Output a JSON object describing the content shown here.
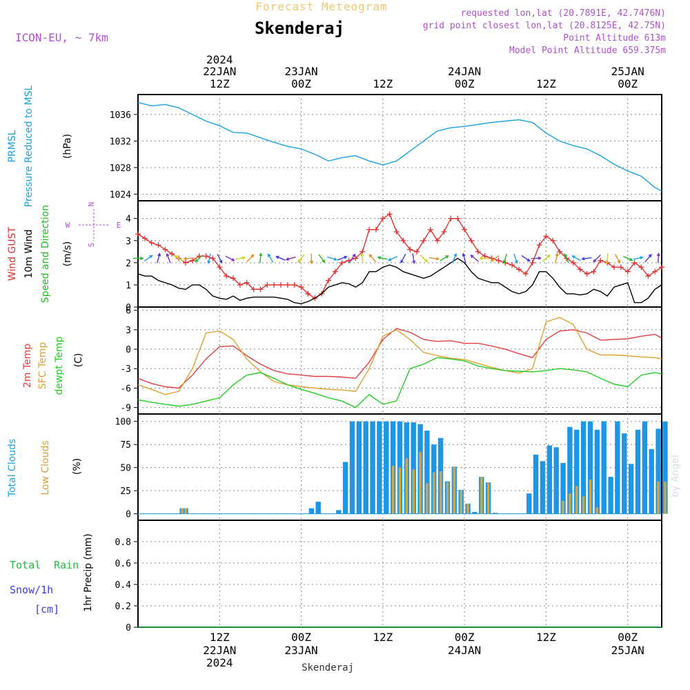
{
  "header": {
    "super_title": "Forecast Meteogram",
    "location": "Skenderaj",
    "model": "ICON-EU, ~ 7km",
    "requested": "requested lon,lat (20.7891E, 42.7476N)",
    "grid_point": "grid point closest lon,lat (20.8125E, 42.75N)",
    "point_alt": "Point Altitude 613m",
    "model_alt": "Model Point Altitude 659.375m",
    "footer": "Skenderaj",
    "credit": "by Angel"
  },
  "colors": {
    "pressure": "#1ba1e2",
    "gust": "#e03030",
    "wind": "#000000",
    "dir": "#22bb22",
    "t2m": "#e04040",
    "sfc": "#e0a030",
    "dew": "#22cc22",
    "total_cloud": "#1e96e6",
    "low_cloud": "#c8a850",
    "rain": "#22bb44",
    "snow": "#3a3ae0",
    "title": "#ecc870",
    "info": "#b050d0",
    "label_cyan": "#1ba1e2"
  },
  "time_axis": {
    "top_ticks": [
      {
        "hour": 12,
        "l1": "2024",
        "l2": "22JAN",
        "l3": "12Z"
      },
      {
        "hour": 24,
        "l1": "",
        "l2": "23JAN",
        "l3": "00Z"
      },
      {
        "hour": 36,
        "l1": "",
        "l2": "",
        "l3": "12Z"
      },
      {
        "hour": 48,
        "l1": "",
        "l2": "24JAN",
        "l3": "00Z"
      },
      {
        "hour": 60,
        "l1": "",
        "l2": "",
        "l3": "12Z"
      },
      {
        "hour": 72,
        "l1": "",
        "l2": "25JAN",
        "l3": "00Z"
      }
    ],
    "bottom_ticks": [
      {
        "hour": 12,
        "l1": "12Z",
        "l2": "22JAN",
        "l3": "2024"
      },
      {
        "hour": 24,
        "l1": "00Z",
        "l2": "23JAN",
        "l3": ""
      },
      {
        "hour": 36,
        "l1": "12Z",
        "l2": "",
        "l3": ""
      },
      {
        "hour": 48,
        "l1": "00Z",
        "l2": "24JAN",
        "l3": ""
      },
      {
        "hour": 60,
        "l1": "12Z",
        "l2": "",
        "l3": ""
      },
      {
        "hour": 72,
        "l1": "00Z",
        "l2": "25JAN",
        "l3": ""
      }
    ],
    "xlim": [
      0,
      77
    ]
  },
  "chart_data": [
    {
      "type": "line",
      "id": "pressure",
      "ylabel": "(hPa)",
      "labels": [
        "PRMSL",
        "Pressure Reduced to MSL"
      ],
      "ylim": [
        1023,
        1039
      ],
      "yticks": [
        1024,
        1028,
        1032,
        1036
      ],
      "series": [
        {
          "name": "PRMSL",
          "color": "#1ba1e2",
          "x": [
            0,
            2,
            4,
            6,
            8,
            10,
            12,
            14,
            16,
            18,
            20,
            22,
            24,
            26,
            28,
            30,
            32,
            34,
            36,
            38,
            40,
            42,
            44,
            46,
            48,
            50,
            52,
            54,
            56,
            58,
            60,
            62,
            64,
            66,
            68,
            70,
            72,
            74,
            76,
            77
          ],
          "y": [
            1037.8,
            1037.3,
            1037.5,
            1037.0,
            1036.0,
            1035.0,
            1034.3,
            1033.3,
            1033.2,
            1032.5,
            1031.8,
            1031.2,
            1030.8,
            1030.0,
            1029.0,
            1029.5,
            1029.8,
            1029.0,
            1028.4,
            1029.0,
            1030.5,
            1032.0,
            1033.5,
            1034.0,
            1034.2,
            1034.5,
            1034.8,
            1035.0,
            1035.2,
            1034.8,
            1033.2,
            1032.0,
            1031.3,
            1030.8,
            1029.8,
            1028.5,
            1027.5,
            1026.7,
            1025.0,
            1024.5
          ]
        }
      ]
    },
    {
      "type": "line",
      "id": "wind",
      "ylabel": "(m/s)",
      "labels": [
        "Wind GUST",
        "10m Wind",
        "Speed and Direction"
      ],
      "compass": {
        "n": "N",
        "s": "S",
        "e": "E",
        "w": "W"
      },
      "ylim": [
        0,
        4.8
      ],
      "yticks": [
        0,
        1,
        2,
        3,
        4
      ],
      "series": [
        {
          "name": "Wind GUST",
          "color": "#e03030",
          "x": [
            0,
            1,
            2,
            3,
            4,
            5,
            6,
            7,
            8,
            9,
            10,
            11,
            12,
            13,
            14,
            15,
            16,
            17,
            18,
            19,
            20,
            21,
            22,
            23,
            24,
            25,
            26,
            27,
            28,
            29,
            30,
            31,
            32,
            33,
            34,
            35,
            36,
            37,
            38,
            39,
            40,
            41,
            42,
            43,
            44,
            45,
            46,
            47,
            48,
            49,
            50,
            51,
            52,
            53,
            54,
            55,
            56,
            57,
            58,
            59,
            60,
            61,
            62,
            63,
            64,
            65,
            66,
            67,
            68,
            69,
            70,
            71,
            72,
            73,
            74,
            75,
            76,
            77
          ],
          "y": [
            3.3,
            3.1,
            2.9,
            2.8,
            2.6,
            2.4,
            2.2,
            2.0,
            2.1,
            2.3,
            2.3,
            2.2,
            1.8,
            1.4,
            1.3,
            1.0,
            1.1,
            0.8,
            0.8,
            1.0,
            1.0,
            1.0,
            1.0,
            1.0,
            0.9,
            0.6,
            0.4,
            0.6,
            1.2,
            1.6,
            2.0,
            2.1,
            2.2,
            2.5,
            3.5,
            3.5,
            4.0,
            4.2,
            3.4,
            3.0,
            2.6,
            2.5,
            3.0,
            3.5,
            3.0,
            3.4,
            4.0,
            4.0,
            3.5,
            3.0,
            2.5,
            2.3,
            2.2,
            2.1,
            2.0,
            1.9,
            1.7,
            1.5,
            2.0,
            2.8,
            3.2,
            3.0,
            2.5,
            2.2,
            2.0,
            1.7,
            1.5,
            1.6,
            2.1,
            2.0,
            1.8,
            1.8,
            1.6,
            2.0,
            1.8,
            1.4,
            1.6,
            1.8
          ]
        },
        {
          "name": "10m Wind",
          "color": "#000000",
          "x": [
            0,
            1,
            2,
            3,
            4,
            5,
            6,
            7,
            8,
            9,
            10,
            11,
            12,
            13,
            14,
            15,
            16,
            17,
            18,
            19,
            20,
            21,
            22,
            23,
            24,
            25,
            26,
            27,
            28,
            29,
            30,
            31,
            32,
            33,
            34,
            35,
            36,
            37,
            38,
            39,
            40,
            41,
            42,
            43,
            44,
            45,
            46,
            47,
            48,
            49,
            50,
            51,
            52,
            53,
            54,
            55,
            56,
            57,
            58,
            59,
            60,
            61,
            62,
            63,
            64,
            65,
            66,
            67,
            68,
            69,
            70,
            71,
            72,
            73,
            74,
            75,
            76,
            77
          ],
          "y": [
            1.5,
            1.4,
            1.4,
            1.2,
            1.1,
            1.0,
            0.85,
            0.8,
            1.0,
            1.0,
            0.8,
            0.5,
            0.4,
            0.35,
            0.5,
            0.3,
            0.4,
            0.45,
            0.45,
            0.45,
            0.45,
            0.4,
            0.35,
            0.2,
            0.15,
            0.25,
            0.4,
            0.6,
            0.9,
            1.0,
            1.1,
            1.05,
            0.9,
            1.1,
            1.6,
            1.6,
            1.8,
            1.9,
            1.8,
            1.6,
            1.5,
            1.4,
            1.3,
            1.4,
            1.6,
            1.8,
            2.0,
            2.2,
            2.0,
            1.6,
            1.3,
            1.2,
            1.1,
            1.1,
            0.9,
            0.7,
            0.6,
            0.7,
            1.0,
            1.6,
            1.6,
            1.3,
            0.9,
            0.6,
            0.6,
            0.55,
            0.6,
            0.8,
            0.7,
            0.5,
            0.9,
            1.0,
            1.1,
            0.2,
            0.2,
            0.4,
            0.8,
            1.0
          ]
        },
        {
          "name": "Speed and Direction",
          "color": "#22bb22",
          "arrows_x": [
            0,
            1.5,
            3,
            4.5,
            6,
            7.5,
            9,
            10.5,
            12,
            13.5,
            15,
            16.5,
            18,
            19.5,
            21,
            22.5,
            24,
            25.5,
            27,
            28.5,
            30,
            31.5,
            33,
            34.5,
            36,
            37.5,
            39,
            40.5,
            42,
            43.5,
            45,
            46.5,
            48,
            49.5,
            51,
            52.5,
            54,
            55.5,
            57,
            58.5,
            60,
            61.5,
            63,
            64.5,
            66,
            67.5,
            69,
            70.5,
            72,
            73.5,
            75,
            76.5
          ]
        }
      ]
    },
    {
      "type": "line",
      "id": "temperature",
      "ylabel": "(C)",
      "labels": [
        "2m Temp",
        "SFC Temp",
        "dewpt Temp"
      ],
      "ylim": [
        -10,
        6.5
      ],
      "yticks": [
        -9,
        -6,
        -3,
        0,
        3,
        6
      ],
      "series": [
        {
          "name": "2m Temp",
          "color": "#e04040",
          "x": [
            0,
            2,
            4,
            6,
            8,
            10,
            12,
            14,
            16,
            18,
            20,
            22,
            24,
            26,
            28,
            30,
            32,
            34,
            36,
            38,
            40,
            42,
            44,
            46,
            48,
            50,
            52,
            54,
            56,
            58,
            60,
            62,
            64,
            66,
            68,
            70,
            72,
            74,
            76,
            77
          ],
          "y": [
            -4.5,
            -5.3,
            -5.8,
            -6.0,
            -4.0,
            -1.5,
            0.4,
            0.5,
            -1.0,
            -2.3,
            -3.3,
            -3.8,
            -4.0,
            -4.2,
            -4.2,
            -4.3,
            -4.5,
            -2.0,
            1.5,
            3.2,
            2.6,
            1.5,
            1.2,
            1.3,
            0.9,
            0.9,
            0.5,
            0.0,
            -0.7,
            -1.3,
            1.5,
            2.8,
            3.0,
            2.5,
            1.4,
            1.5,
            1.6,
            2.0,
            2.3,
            1.7
          ]
        },
        {
          "name": "SFC Temp",
          "color": "#e0a030",
          "x": [
            0,
            2,
            4,
            6,
            8,
            10,
            12,
            14,
            16,
            18,
            20,
            22,
            24,
            26,
            28,
            30,
            32,
            34,
            36,
            38,
            40,
            42,
            44,
            46,
            48,
            50,
            52,
            54,
            56,
            58,
            60,
            62,
            64,
            66,
            68,
            70,
            72,
            74,
            76,
            77
          ],
          "y": [
            -5.5,
            -6.2,
            -7.0,
            -6.5,
            -3.0,
            2.5,
            2.8,
            1.5,
            -1.5,
            -3.5,
            -5.0,
            -5.5,
            -5.8,
            -6.0,
            -6.2,
            -6.3,
            -6.5,
            -3.0,
            2.0,
            3.0,
            1.5,
            -0.5,
            -1.0,
            -1.4,
            -1.6,
            -2.2,
            -2.8,
            -3.3,
            -3.7,
            -3.0,
            4.2,
            4.9,
            3.8,
            0.0,
            -0.9,
            -0.9,
            -1.0,
            -1.2,
            -1.3,
            -1.5
          ]
        },
        {
          "name": "dewpt Temp",
          "color": "#22cc22",
          "x": [
            0,
            2,
            4,
            6,
            8,
            10,
            12,
            14,
            16,
            18,
            20,
            22,
            24,
            26,
            28,
            30,
            32,
            34,
            36,
            38,
            40,
            42,
            44,
            46,
            48,
            50,
            52,
            54,
            56,
            58,
            60,
            62,
            64,
            66,
            68,
            70,
            72,
            74,
            76,
            77
          ],
          "y": [
            -7.8,
            -8.2,
            -8.5,
            -8.8,
            -8.5,
            -8.0,
            -7.5,
            -5.5,
            -4.0,
            -3.6,
            -4.5,
            -5.5,
            -6.2,
            -6.8,
            -7.5,
            -8.0,
            -9.0,
            -7.0,
            -8.5,
            -8.0,
            -3.0,
            -2.3,
            -1.3,
            -1.5,
            -1.8,
            -2.6,
            -3.0,
            -3.3,
            -3.4,
            -3.5,
            -3.3,
            -3.0,
            -3.2,
            -3.5,
            -4.5,
            -5.4,
            -5.8,
            -4.0,
            -3.6,
            -3.8
          ]
        }
      ]
    },
    {
      "type": "bar",
      "id": "clouds",
      "ylabel": "(%)",
      "labels": [
        "Total Clouds",
        "Low Clouds"
      ],
      "ylim": [
        -7,
        108
      ],
      "yticks": [
        0,
        25,
        50,
        75,
        100
      ],
      "series": [
        {
          "name": "Total Clouds",
          "color": "#1e96e6",
          "x": [
            6,
            6.5,
            25,
            26,
            29,
            30,
            31,
            32,
            33,
            34,
            35,
            36,
            37,
            38,
            39,
            40,
            41,
            42,
            43,
            44,
            45,
            46,
            47,
            48,
            49,
            50,
            51,
            52,
            57,
            58,
            59,
            60,
            61,
            62,
            63,
            64,
            65,
            66,
            67,
            68,
            69,
            70,
            71,
            72,
            73,
            74,
            75,
            76,
            77
          ],
          "values": [
            6,
            6,
            6,
            13,
            4,
            56,
            100,
            100,
            100,
            100,
            100,
            100,
            100,
            100,
            99,
            99,
            97,
            90,
            75,
            82,
            35,
            51,
            26,
            11,
            2,
            40,
            34,
            1,
            22,
            64,
            57,
            74,
            72,
            55,
            94,
            91,
            100,
            100,
            91,
            100,
            40,
            100,
            87,
            54,
            91,
            100,
            70,
            92,
            100
          ]
        },
        {
          "name": "Low Clouds",
          "color": "#c8a850",
          "x": [
            6,
            6.5,
            37,
            38,
            39,
            40,
            41,
            42,
            43,
            44,
            45,
            46,
            47,
            48,
            50,
            51,
            62,
            63,
            64,
            65,
            66,
            67,
            76,
            77
          ],
          "values": [
            6,
            6,
            52,
            50,
            60,
            48,
            67,
            33,
            45,
            46,
            34,
            51,
            26,
            11,
            40,
            34,
            14,
            22,
            30,
            19,
            37,
            7,
            35,
            35
          ]
        }
      ]
    },
    {
      "type": "line",
      "id": "precip",
      "ylabel": "1hr Precip (mm)",
      "labels": [
        "Total",
        "Rain",
        "Snow/1h",
        "[cm]"
      ],
      "ylim": [
        0,
        1.0
      ],
      "yticks": [
        0,
        0.2,
        0.4,
        0.6,
        0.8
      ],
      "series": [
        {
          "name": "Total",
          "color": "#22bb44",
          "x": [
            0,
            77
          ],
          "y": [
            0,
            0
          ]
        }
      ]
    }
  ]
}
